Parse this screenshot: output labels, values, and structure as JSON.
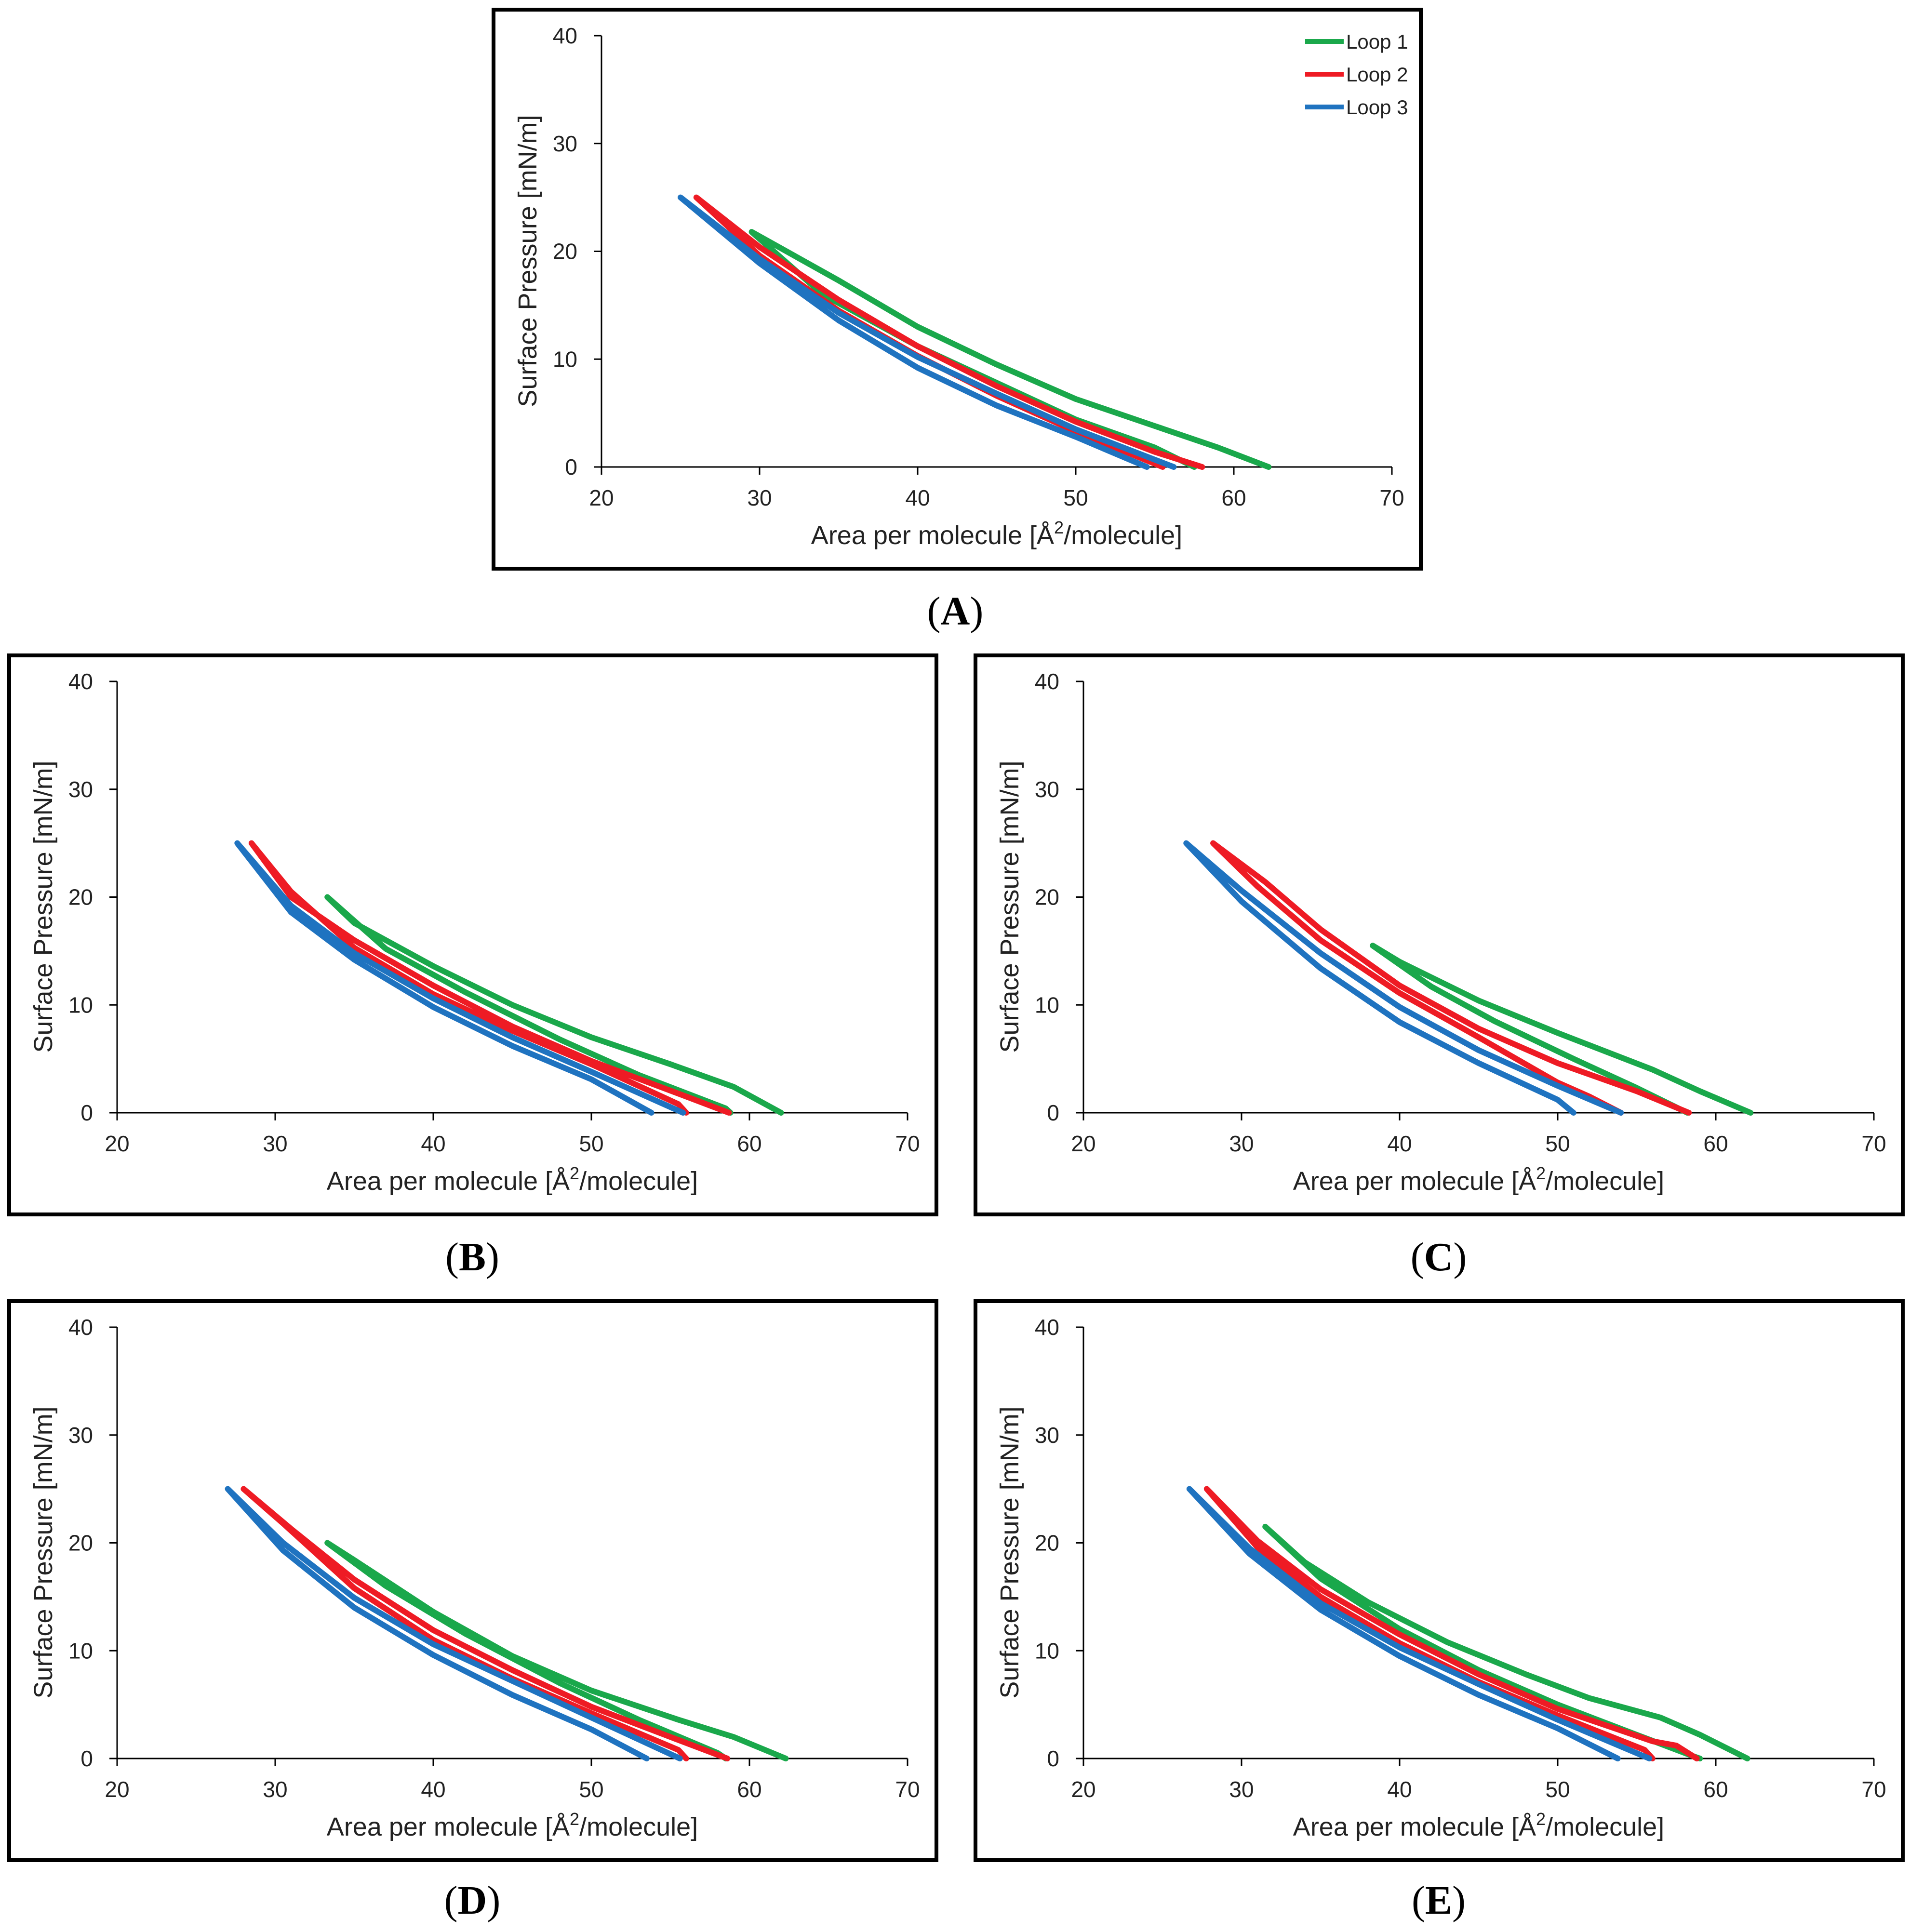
{
  "figure": {
    "colors": {
      "loop1": "#1aa84b",
      "loop2": "#ee1b24",
      "loop3": "#1f73c0",
      "axis": "#000000"
    }
  },
  "chart_data": [
    {
      "id": "A",
      "caption_label": "A",
      "type": "line",
      "xlabel": "Area per molecule [Å²/molecule]",
      "xlabel_prefix": "Area per molecule [Å",
      "xlabel_sup": "2",
      "xlabel_suffix": "/molecule]",
      "ylabel": "Surface Pressure [mN/m]",
      "xlim": [
        20,
        70
      ],
      "ylim": [
        0,
        40
      ],
      "xticks": [
        20,
        30,
        40,
        50,
        60,
        70
      ],
      "yticks": [
        0,
        10,
        20,
        30,
        40
      ],
      "legend": [
        "Loop 1",
        "Loop 2",
        "Loop 3"
      ],
      "legend_position": "top-right",
      "series": [
        {
          "name": "Loop 1",
          "color_key": "loop1",
          "points": [
            [
              62.2,
              0
            ],
            [
              59,
              1.8
            ],
            [
              55,
              3.8
            ],
            [
              50,
              6.3
            ],
            [
              45,
              9.5
            ],
            [
              40,
              13
            ],
            [
              35,
              17.3
            ],
            [
              29.5,
              21.8
            ],
            [
              34,
              16
            ],
            [
              40,
              11.2
            ],
            [
              45,
              7.8
            ],
            [
              50,
              4.4
            ],
            [
              55,
              1.8
            ],
            [
              57.5,
              0
            ]
          ]
        },
        {
          "name": "Loop 2",
          "color_key": "loop2",
          "points": [
            [
              58,
              0
            ],
            [
              55,
              1.4
            ],
            [
              50,
              4.2
            ],
            [
              45,
              7.5
            ],
            [
              40,
              11.2
            ],
            [
              35,
              15.5
            ],
            [
              30,
              20.4
            ],
            [
              26,
              25
            ],
            [
              30,
              19.6
            ],
            [
              35,
              14.5
            ],
            [
              40,
              10.3
            ],
            [
              45,
              6.6
            ],
            [
              50,
              3.3
            ],
            [
              55.5,
              0
            ]
          ]
        },
        {
          "name": "Loop 3",
          "color_key": "loop3",
          "points": [
            [
              56.2,
              0
            ],
            [
              50,
              3.5
            ],
            [
              45,
              6.8
            ],
            [
              40,
              10.2
            ],
            [
              35,
              14.3
            ],
            [
              30,
              19.3
            ],
            [
              25,
              25
            ],
            [
              30,
              18.9
            ],
            [
              35,
              13.6
            ],
            [
              40,
              9.2
            ],
            [
              45,
              5.7
            ],
            [
              50,
              2.8
            ],
            [
              54.5,
              0
            ]
          ]
        }
      ]
    },
    {
      "id": "B",
      "caption_label": "B",
      "type": "line",
      "xlabel": "Area per molecule [Å²/molecule]",
      "xlabel_prefix": "Area per molecule [Å",
      "xlabel_sup": "2",
      "xlabel_suffix": "/molecule]",
      "ylabel": "Surface Pressure [mN/m]",
      "xlim": [
        20,
        70
      ],
      "ylim": [
        0,
        40
      ],
      "xticks": [
        20,
        30,
        40,
        50,
        60,
        70
      ],
      "yticks": [
        0,
        10,
        20,
        30,
        40
      ],
      "series": [
        {
          "name": "Loop 1",
          "color_key": "loop1",
          "points": [
            [
              62,
              0
            ],
            [
              59,
              2.4
            ],
            [
              55,
              4.5
            ],
            [
              50,
              7
            ],
            [
              45,
              10
            ],
            [
              40,
              13.6
            ],
            [
              35,
              17.6
            ],
            [
              33.3,
              20
            ],
            [
              37,
              15.2
            ],
            [
              42,
              11.2
            ],
            [
              48,
              6.8
            ],
            [
              53,
              3.5
            ],
            [
              58.5,
              0.4
            ],
            [
              58.8,
              0
            ]
          ]
        },
        {
          "name": "Loop 2",
          "color_key": "loop2",
          "points": [
            [
              58.7,
              0
            ],
            [
              56,
              1.5
            ],
            [
              50,
              4.8
            ],
            [
              45,
              8
            ],
            [
              40,
              11.8
            ],
            [
              35,
              16
            ],
            [
              31,
              20
            ],
            [
              28.5,
              25
            ],
            [
              31,
              20.5
            ],
            [
              35,
              15.3
            ],
            [
              40,
              11
            ],
            [
              45,
              7.6
            ],
            [
              50,
              4.5
            ],
            [
              55.5,
              0.8
            ],
            [
              56,
              0
            ]
          ]
        },
        {
          "name": "Loop 3",
          "color_key": "loop3",
          "points": [
            [
              55.8,
              0
            ],
            [
              50,
              3.8
            ],
            [
              45,
              7
            ],
            [
              40,
              10.6
            ],
            [
              35,
              14.8
            ],
            [
              31,
              19.2
            ],
            [
              27.6,
              25
            ],
            [
              31,
              18.6
            ],
            [
              35,
              14.2
            ],
            [
              40,
              9.8
            ],
            [
              45,
              6.2
            ],
            [
              50,
              3.1
            ],
            [
              53.8,
              0
            ]
          ]
        }
      ]
    },
    {
      "id": "C",
      "caption_label": "C",
      "type": "line",
      "xlabel": "Area per molecule [Å²/molecule]",
      "xlabel_prefix": "Area per molecule [Å",
      "xlabel_sup": "2",
      "xlabel_suffix": "/molecule]",
      "ylabel": "Surface Pressure [mN/m]",
      "xlim": [
        20,
        70
      ],
      "ylim": [
        0,
        40
      ],
      "xticks": [
        20,
        30,
        40,
        50,
        60,
        70
      ],
      "yticks": [
        0,
        10,
        20,
        30,
        40
      ],
      "series": [
        {
          "name": "Loop 1",
          "color_key": "loop1",
          "points": [
            [
              62.2,
              0
            ],
            [
              59,
              2
            ],
            [
              56,
              4
            ],
            [
              50,
              7.4
            ],
            [
              45,
              10.4
            ],
            [
              40,
              14
            ],
            [
              38.3,
              15.5
            ],
            [
              42,
              11.7
            ],
            [
              46,
              8.5
            ],
            [
              51,
              5
            ],
            [
              55,
              2.3
            ],
            [
              58.2,
              0
            ]
          ]
        },
        {
          "name": "Loop 2",
          "color_key": "loop2",
          "points": [
            [
              58.3,
              0
            ],
            [
              55,
              2
            ],
            [
              50,
              4.6
            ],
            [
              45,
              7.8
            ],
            [
              40,
              11.8
            ],
            [
              35,
              17
            ],
            [
              31.5,
              21.4
            ],
            [
              28.2,
              25
            ],
            [
              31,
              21
            ],
            [
              35,
              16
            ],
            [
              40,
              11.1
            ],
            [
              45,
              7
            ],
            [
              50,
              2.8
            ],
            [
              52,
              1.5
            ],
            [
              54,
              0
            ]
          ]
        },
        {
          "name": "Loop 3",
          "color_key": "loop3",
          "points": [
            [
              54,
              0
            ],
            [
              50,
              2.5
            ],
            [
              45,
              5.8
            ],
            [
              40,
              9.8
            ],
            [
              35,
              14.8
            ],
            [
              30,
              20.6
            ],
            [
              26.5,
              25
            ],
            [
              30,
              19.6
            ],
            [
              35,
              13.4
            ],
            [
              40,
              8.4
            ],
            [
              45,
              4.6
            ],
            [
              50,
              1.2
            ],
            [
              51,
              0
            ]
          ]
        }
      ]
    },
    {
      "id": "D",
      "caption_label": "D",
      "type": "line",
      "xlabel": "Area per molecule [Å²/molecule]",
      "xlabel_prefix": "Area per molecule [Å",
      "xlabel_sup": "2",
      "xlabel_suffix": "/molecule]",
      "ylabel": "Surface Pressure [mN/m]",
      "xlim": [
        20,
        70
      ],
      "ylim": [
        0,
        40
      ],
      "xticks": [
        20,
        30,
        40,
        50,
        60,
        70
      ],
      "yticks": [
        0,
        10,
        20,
        30,
        40
      ],
      "series": [
        {
          "name": "Loop 1",
          "color_key": "loop1",
          "points": [
            [
              62.3,
              0
            ],
            [
              59,
              2
            ],
            [
              55.5,
              3.6
            ],
            [
              50,
              6.3
            ],
            [
              45,
              9.5
            ],
            [
              40,
              13.6
            ],
            [
              35,
              18.4
            ],
            [
              33.3,
              20
            ],
            [
              37,
              16
            ],
            [
              42,
              11.6
            ],
            [
              48,
              7
            ],
            [
              53,
              3.6
            ],
            [
              58,
              0.5
            ],
            [
              58.5,
              0
            ]
          ]
        },
        {
          "name": "Loop 2",
          "color_key": "loop2",
          "points": [
            [
              58.6,
              0
            ],
            [
              55,
              2
            ],
            [
              50,
              4.8
            ],
            [
              45,
              8.2
            ],
            [
              40,
              11.9
            ],
            [
              35,
              16.6
            ],
            [
              31,
              21.3
            ],
            [
              28,
              25
            ],
            [
              30.5,
              21.8
            ],
            [
              35,
              15.8
            ],
            [
              40,
              11
            ],
            [
              45,
              7.4
            ],
            [
              50,
              4.2
            ],
            [
              55.5,
              0.8
            ],
            [
              56,
              0
            ]
          ]
        },
        {
          "name": "Loop 3",
          "color_key": "loop3",
          "points": [
            [
              55.6,
              0
            ],
            [
              50,
              3.8
            ],
            [
              45,
              7.2
            ],
            [
              40,
              10.6
            ],
            [
              35,
              14.9
            ],
            [
              30.5,
              20
            ],
            [
              27,
              25
            ],
            [
              30.5,
              19.3
            ],
            [
              35,
              14
            ],
            [
              40,
              9.6
            ],
            [
              45,
              5.9
            ],
            [
              50,
              2.7
            ],
            [
              53.5,
              0
            ]
          ]
        }
      ]
    },
    {
      "id": "E",
      "caption_label": "E",
      "type": "line",
      "xlabel": "Area per molecule [Å²/molecule]",
      "xlabel_prefix": "Area per molecule [Å",
      "xlabel_sup": "2",
      "xlabel_suffix": "/molecule]",
      "ylabel": "Surface Pressure [mN/m]",
      "xlim": [
        20,
        70
      ],
      "ylim": [
        0,
        40
      ],
      "xticks": [
        20,
        30,
        40,
        50,
        60,
        70
      ],
      "yticks": [
        0,
        10,
        20,
        30,
        40
      ],
      "series": [
        {
          "name": "Loop 1",
          "color_key": "loop1",
          "points": [
            [
              62,
              0
            ],
            [
              59,
              2.2
            ],
            [
              56.5,
              3.8
            ],
            [
              52,
              5.6
            ],
            [
              48,
              7.8
            ],
            [
              43,
              10.8
            ],
            [
              38,
              14.5
            ],
            [
              34,
              18.2
            ],
            [
              31.5,
              21.5
            ],
            [
              35,
              16.7
            ],
            [
              40,
              12
            ],
            [
              45,
              8.2
            ],
            [
              50,
              5
            ],
            [
              55,
              2.2
            ],
            [
              58.6,
              0.2
            ],
            [
              59,
              0
            ]
          ]
        },
        {
          "name": "Loop 2",
          "color_key": "loop2",
          "points": [
            [
              58.8,
              0
            ],
            [
              57.5,
              1.2
            ],
            [
              56,
              1.6
            ],
            [
              50,
              4.6
            ],
            [
              45,
              7.8
            ],
            [
              40,
              11.5
            ],
            [
              35,
              15.7
            ],
            [
              31,
              20.2
            ],
            [
              27.8,
              25
            ],
            [
              31,
              19.6
            ],
            [
              35,
              15
            ],
            [
              40,
              10.7
            ],
            [
              45,
              7.1
            ],
            [
              50,
              4
            ],
            [
              55.5,
              0.8
            ],
            [
              56,
              0
            ]
          ]
        },
        {
          "name": "Loop 3",
          "color_key": "loop3",
          "points": [
            [
              55.8,
              0
            ],
            [
              50,
              3.6
            ],
            [
              45,
              6.9
            ],
            [
              40,
              10.3
            ],
            [
              35,
              14.4
            ],
            [
              30.5,
              19.5
            ],
            [
              26.7,
              25
            ],
            [
              30.5,
              19
            ],
            [
              35,
              13.8
            ],
            [
              40,
              9.5
            ],
            [
              45,
              5.9
            ],
            [
              50,
              2.8
            ],
            [
              53.8,
              0
            ]
          ]
        }
      ]
    }
  ]
}
